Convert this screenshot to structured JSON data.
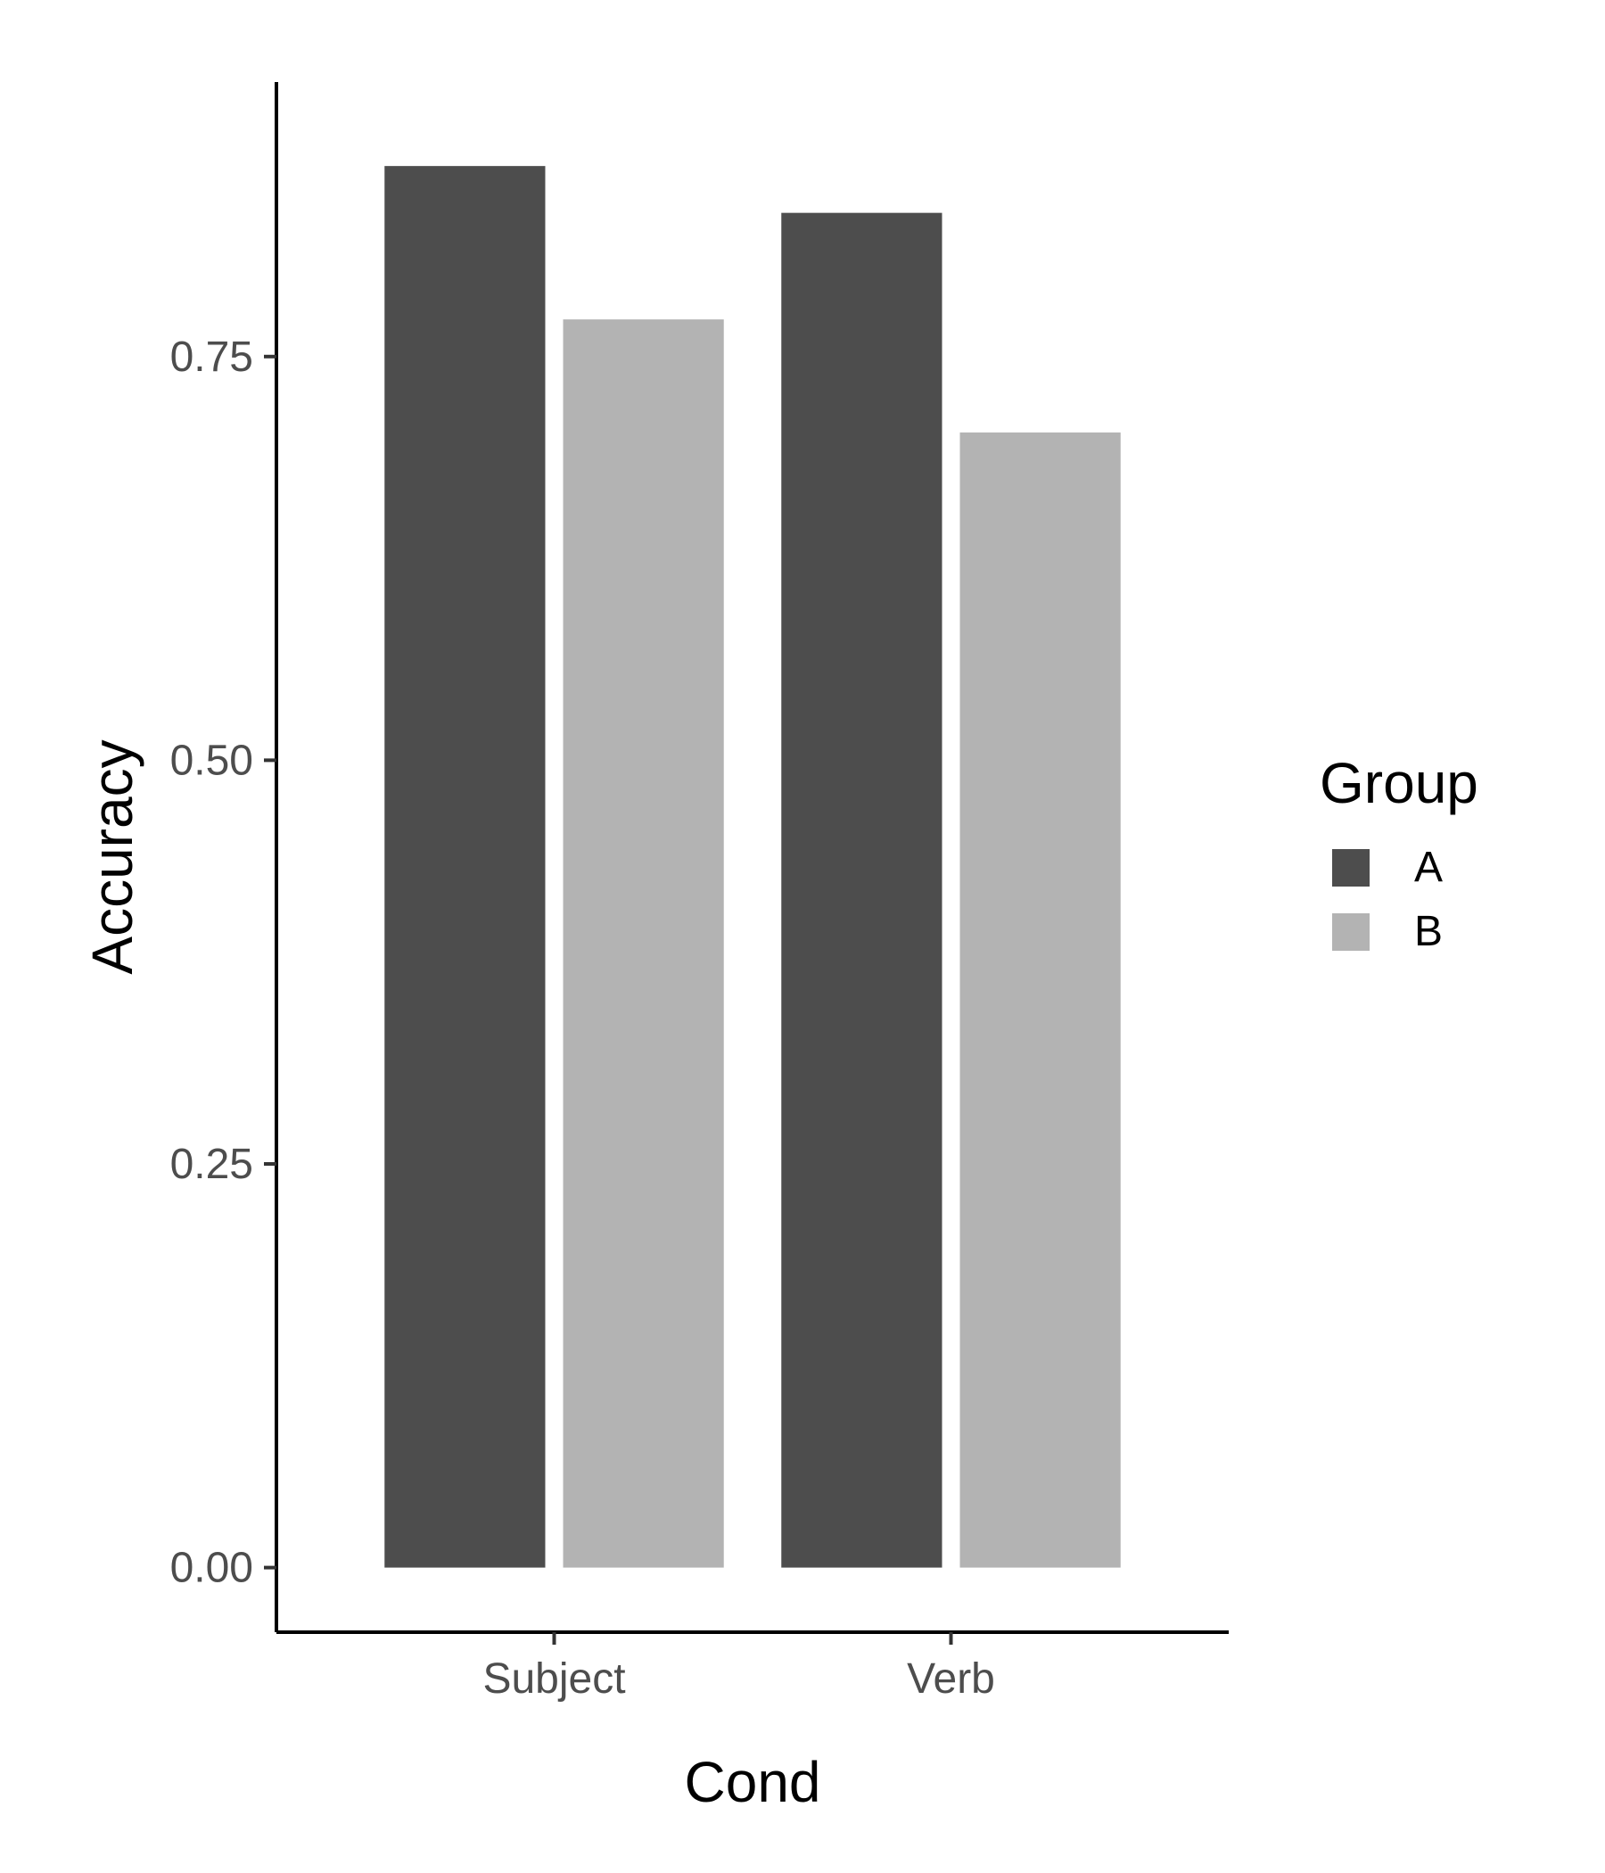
{
  "chart_data": {
    "type": "bar",
    "categories": [
      "Subject",
      "Verb"
    ],
    "series": [
      {
        "name": "A",
        "values": [
          0.868,
          0.839
        ],
        "color": "#4d4d4d"
      },
      {
        "name": "B",
        "values": [
          0.773,
          0.703
        ],
        "color": "#b3b3b3"
      }
    ],
    "xlabel": "Cond",
    "ylabel": "Accuracy",
    "ylim": [
      -0.04,
      0.92
    ],
    "yticks": [
      0,
      0.25,
      0.5,
      0.75
    ],
    "ytick_labels": [
      "0.00",
      "0.25",
      "0.50",
      "0.75"
    ],
    "legend": {
      "title": "Group",
      "position": "right"
    },
    "grid": false
  }
}
